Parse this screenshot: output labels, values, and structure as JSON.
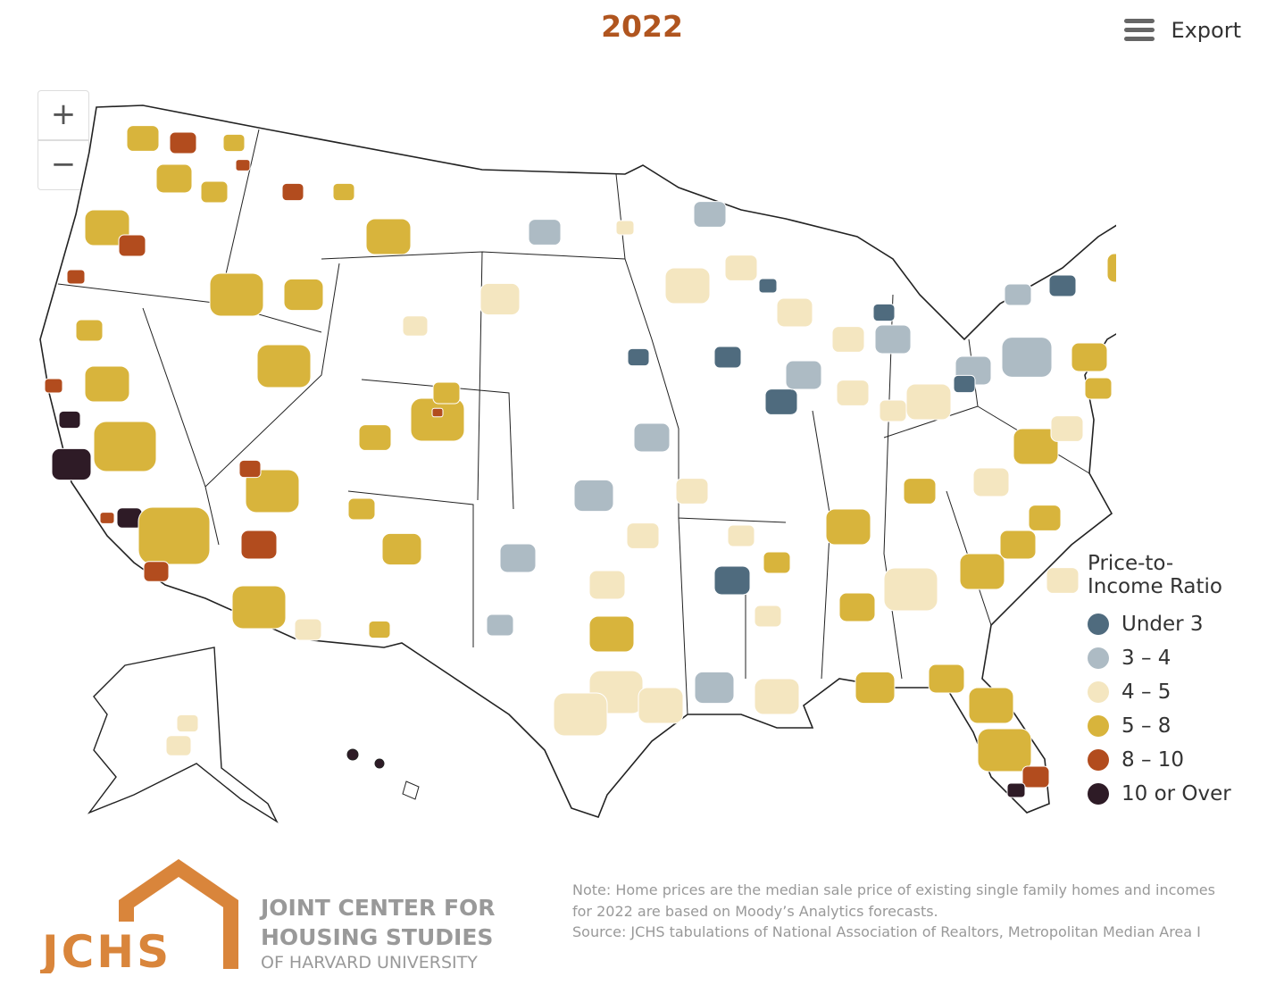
{
  "header": {
    "title": "2022",
    "export": "Export"
  },
  "zoom": {
    "in": "+",
    "out": "−"
  },
  "legend": {
    "title": [
      "Price-to-",
      "Income Ratio"
    ],
    "items": [
      {
        "label": "Under 3",
        "color": "#4f6b7e"
      },
      {
        "label": "3 – 4",
        "color": "#adbbc4"
      },
      {
        "label": "4 – 5",
        "color": "#f4e6c0"
      },
      {
        "label": "5 – 8",
        "color": "#d8b43c"
      },
      {
        "label": "8 – 10",
        "color": "#b24c1e"
      },
      {
        "label": "10 or Over",
        "color": "#2e1b26"
      }
    ]
  },
  "note": [
    "Note: Home prices are the median sale price of existing single family homes and incomes",
    "for 2022 are based on Moody’s Analytics forecasts.",
    "Source: JCHS tabulations of National Association of Realtors, Metropolitan Median Area I"
  ],
  "logo": {
    "mark": "JCHS",
    "lines": [
      "JOINT CENTER FOR",
      "HOUSING STUDIES",
      "OF HARVARD UNIVERSITY"
    ]
  }
}
